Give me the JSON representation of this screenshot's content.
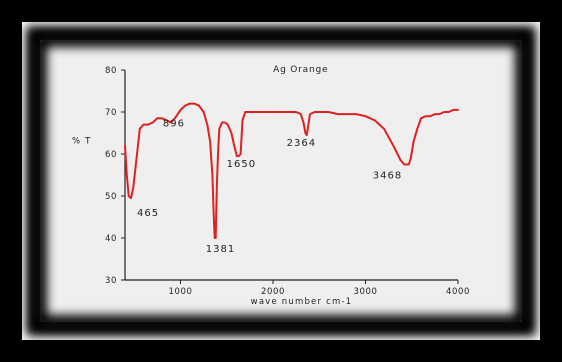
{
  "chart_data": {
    "type": "line",
    "title": "Ag Orange",
    "xlabel": "wave number cm-1",
    "ylabel": "% T",
    "xlim": [
      400,
      4000
    ],
    "ylim": [
      30,
      80
    ],
    "xticks": [
      1000,
      2000,
      3000,
      4000
    ],
    "yticks": [
      30,
      40,
      50,
      60,
      70,
      80
    ],
    "grid": false,
    "series": [
      {
        "color": "#e02020",
        "x": [
          400,
          420,
          440,
          465,
          490,
          520,
          560,
          600,
          650,
          700,
          750,
          800,
          850,
          896,
          940,
          1000,
          1050,
          1100,
          1150,
          1200,
          1250,
          1290,
          1320,
          1345,
          1360,
          1370,
          1381,
          1392,
          1405,
          1420,
          1450,
          1480,
          1510,
          1550,
          1580,
          1610,
          1630,
          1650,
          1670,
          1700,
          1750,
          1800,
          1900,
          2000,
          2100,
          2200,
          2250,
          2300,
          2330,
          2350,
          2364,
          2380,
          2400,
          2450,
          2500,
          2600,
          2700,
          2800,
          2900,
          3000,
          3100,
          3200,
          3300,
          3380,
          3420,
          3450,
          3468,
          3490,
          3520,
          3560,
          3600,
          3650,
          3700,
          3750,
          3800,
          3850,
          3900,
          3950,
          4000
        ],
        "y": [
          62,
          55,
          50,
          49.5,
          52,
          58,
          66,
          67,
          67,
          67.5,
          68.5,
          68.5,
          68,
          67.5,
          68.5,
          70.5,
          71.5,
          72,
          72,
          71.5,
          70,
          67,
          63,
          55,
          45,
          40,
          40,
          52,
          60,
          66,
          67.5,
          67.5,
          67,
          65,
          62,
          59.5,
          59.5,
          60,
          68,
          70,
          70,
          70,
          70,
          70,
          70,
          70,
          70,
          69.5,
          67.5,
          65,
          64.5,
          66.5,
          69.5,
          70,
          70,
          70,
          69.5,
          69.5,
          69.5,
          69,
          68,
          66,
          62,
          58.5,
          57.5,
          57.5,
          57.5,
          59,
          63,
          66,
          68.5,
          69,
          69,
          69.5,
          69.5,
          70,
          70,
          70.5,
          70.5
        ]
      }
    ],
    "annotations": [
      {
        "text": "465",
        "x": 465,
        "y": 49.5
      },
      {
        "text": "896",
        "x": 896,
        "y": 67.5
      },
      {
        "text": "1381",
        "x": 1381,
        "y": 40
      },
      {
        "text": "1650",
        "x": 1650,
        "y": 60
      },
      {
        "text": "2364",
        "x": 2364,
        "y": 64.5
      },
      {
        "text": "3468",
        "x": 3468,
        "y": 57.5
      }
    ]
  }
}
